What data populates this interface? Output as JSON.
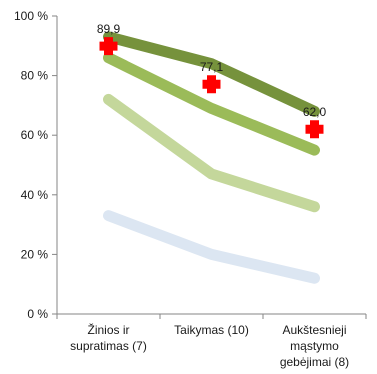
{
  "chart_data": {
    "type": "line",
    "categories": [
      [
        "Žinios ir",
        "supratimas (7)"
      ],
      [
        "Taikymas (10)"
      ],
      [
        "Aukštesnieji",
        "mąstymo",
        "gebėjimai (8)"
      ]
    ],
    "ylim": [
      0,
      100
    ],
    "yticks": [
      0,
      20,
      40,
      60,
      80,
      100
    ],
    "ytick_labels": [
      "0 %",
      "20 %",
      "40 %",
      "60 %",
      "80 %",
      "100 %"
    ],
    "grid": false,
    "series": [
      {
        "values": [
          33,
          20,
          12
        ],
        "color": "#dce6f2"
      },
      {
        "values": [
          72,
          47,
          36
        ],
        "color": "#c4d79b"
      },
      {
        "values": [
          86,
          69,
          55
        ],
        "color": "#9bbb59"
      },
      {
        "values": [
          93,
          84,
          68
        ],
        "color": "#76923c"
      }
    ],
    "markers": {
      "symbol": "cross",
      "color": "#ff0000",
      "values": [
        89.9,
        77.1,
        62.0
      ],
      "labels": [
        "89,9",
        "77,1",
        "62,0"
      ]
    }
  }
}
